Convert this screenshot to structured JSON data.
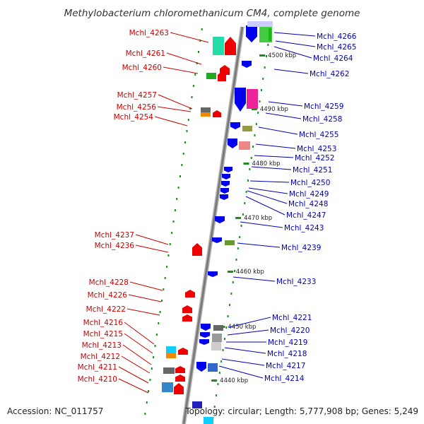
{
  "title": "Methylobacterium chloromethanicum CM4, complete genome",
  "footer": {
    "accession": "Accession: NC_011757",
    "topology": "Topology: circular; Length: 5,777,908 bp; Genes: 5,249"
  },
  "scale_labels": [
    "4500 kbp",
    "4490 kbp",
    "4480 kbp",
    "4470 kbp",
    "4460 kbp",
    "4450 kbp",
    "4440 kbp"
  ],
  "colors": {
    "forward_strand": "#ee0000",
    "reverse_strand": "#0000ee",
    "backbone": "#8a8a8a",
    "tick": "#228822"
  },
  "genes_left": [
    "Mchl_4263",
    "Mchl_4261",
    "Mchl_4260",
    "Mchl_4257",
    "Mchl_4256",
    "Mchl_4254",
    "Mchl_4237",
    "Mchl_4236",
    "Mchl_4228",
    "Mchl_4226",
    "Mchl_4222",
    "Mchl_4216",
    "Mchl_4215",
    "Mchl_4213",
    "Mchl_4212",
    "Mchl_4211",
    "Mchl_4210"
  ],
  "genes_right": [
    "Mchl_4266",
    "Mchl_4265",
    "Mchl_4264",
    "Mchl_4262",
    "Mchl_4259",
    "Mchl_4258",
    "Mchl_4255",
    "Mchl_4253",
    "Mchl_4252",
    "Mchl_4251",
    "Mchl_4250",
    "Mchl_4249",
    "Mchl_4248",
    "Mchl_4247",
    "Mchl_4243",
    "Mchl_4239",
    "Mchl_4233",
    "Mchl_4221",
    "Mchl_4220",
    "Mchl_4219",
    "Mchl_4218",
    "Mchl_4217",
    "Mchl_4214"
  ]
}
